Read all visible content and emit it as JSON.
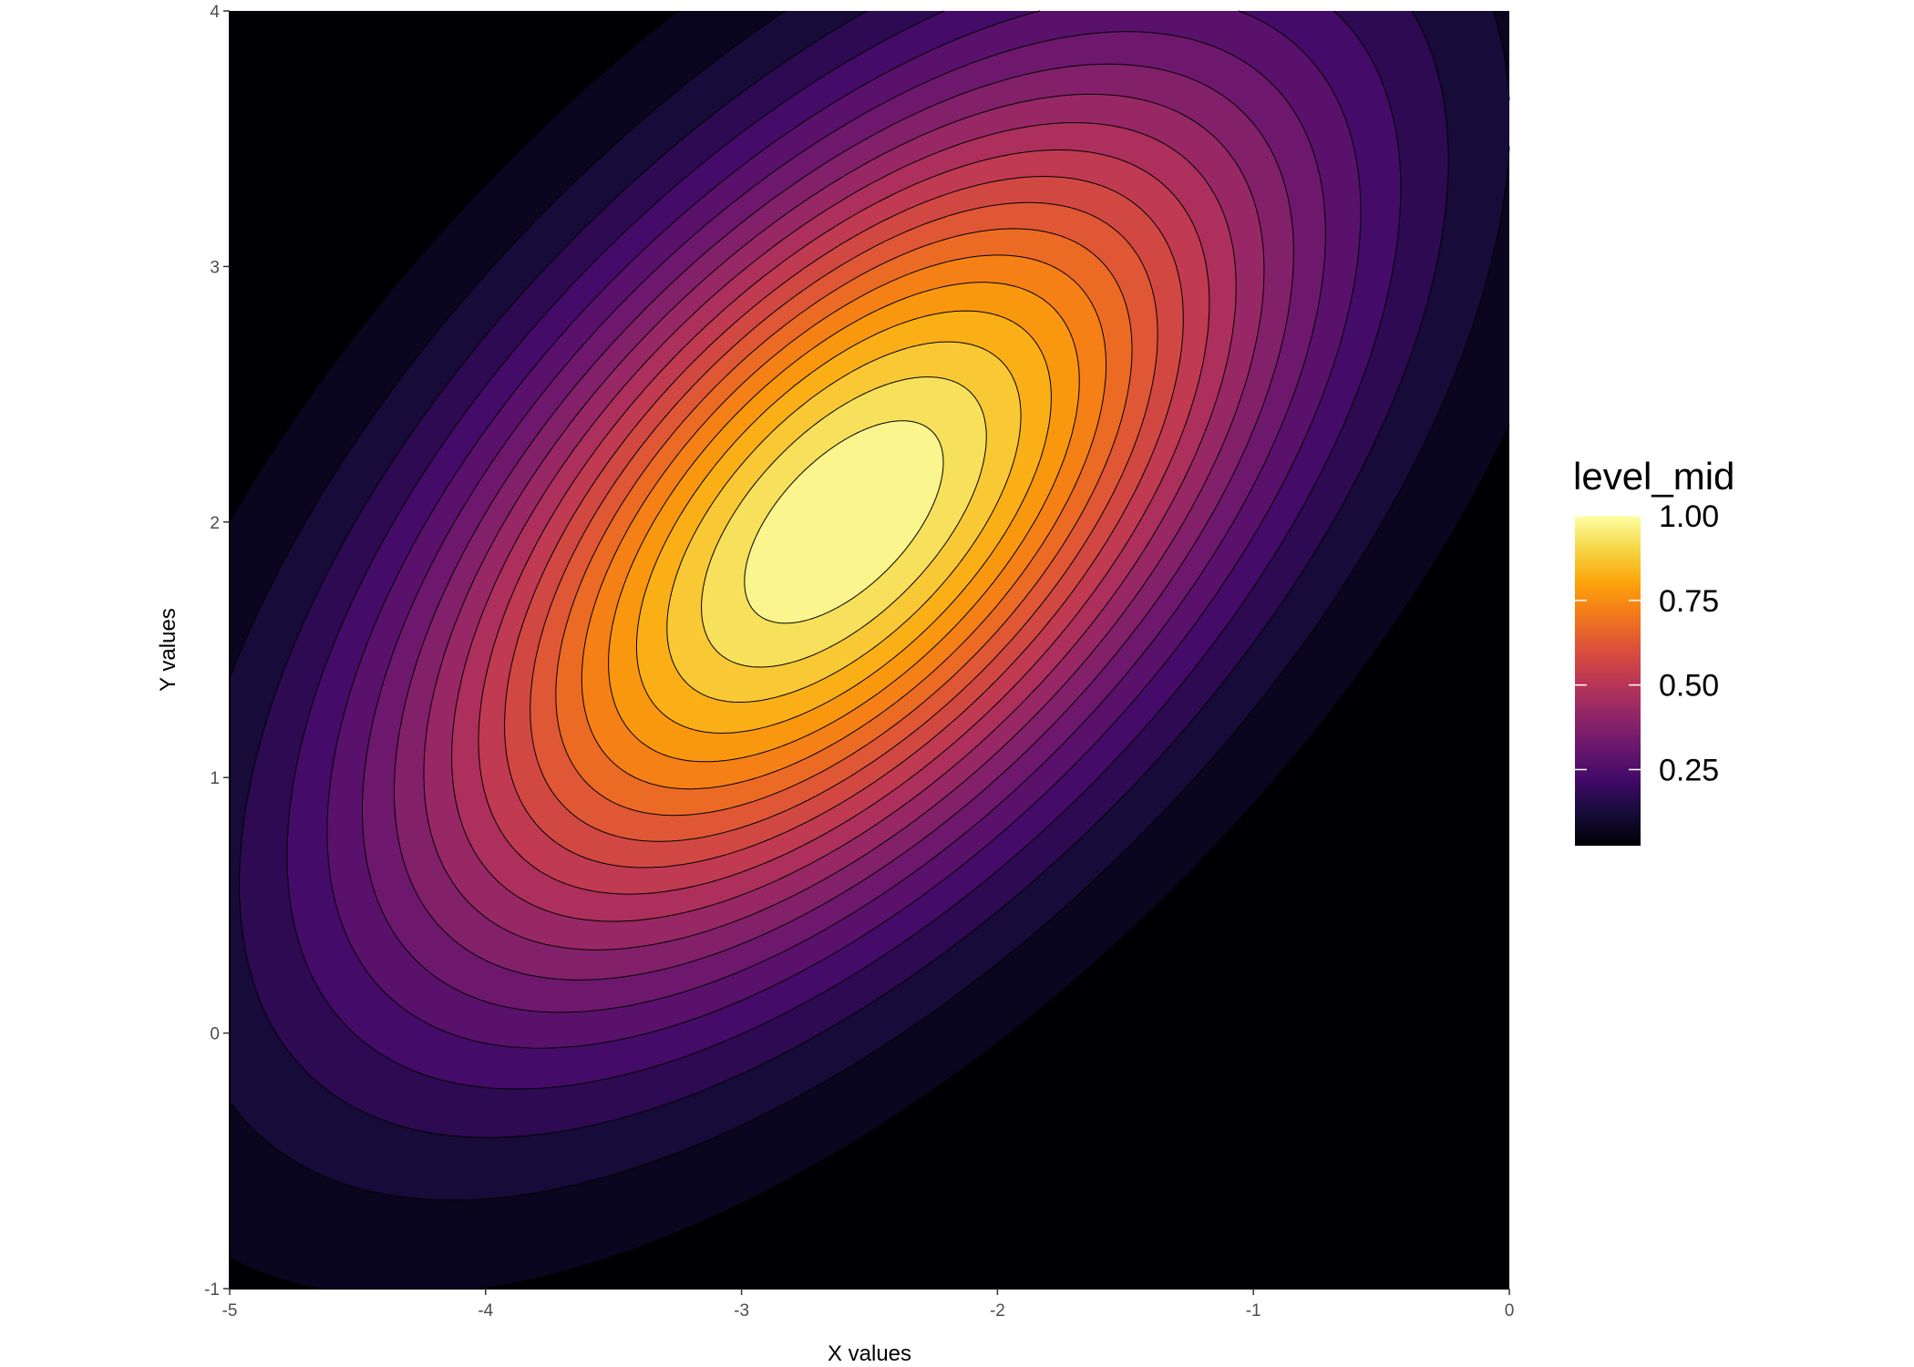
{
  "chart_data": {
    "type": "contour",
    "title": "",
    "xlabel": "X values",
    "ylabel": "Y values",
    "xlim": [
      -5,
      0
    ],
    "ylim": [
      -1,
      4
    ],
    "x_ticks": [
      "-5",
      "-4",
      "-3",
      "-2",
      "-1",
      "0"
    ],
    "y_ticks": [
      "-1",
      "0",
      "1",
      "2",
      "3",
      "4"
    ],
    "palette": "inferno",
    "grid": false,
    "peak": {
      "x": -2.6,
      "y": 2.0,
      "value": 1.0
    },
    "quadratic_form": {
      "a": 1.04,
      "b": -0.6,
      "c": 1.0
    },
    "levels": [
      0.05,
      0.1,
      0.15,
      0.2,
      0.25,
      0.3,
      0.35,
      0.4,
      0.45,
      0.5,
      0.55,
      0.6,
      0.65,
      0.7,
      0.75,
      0.8,
      0.85,
      0.9,
      0.95
    ],
    "legend": {
      "title": "level_mid",
      "position": "right",
      "labels": [
        "1.00",
        "0.75",
        "0.50",
        "0.25"
      ],
      "values": [
        1.0,
        0.75,
        0.5,
        0.25
      ],
      "range": [
        0.025,
        1.0
      ]
    }
  }
}
